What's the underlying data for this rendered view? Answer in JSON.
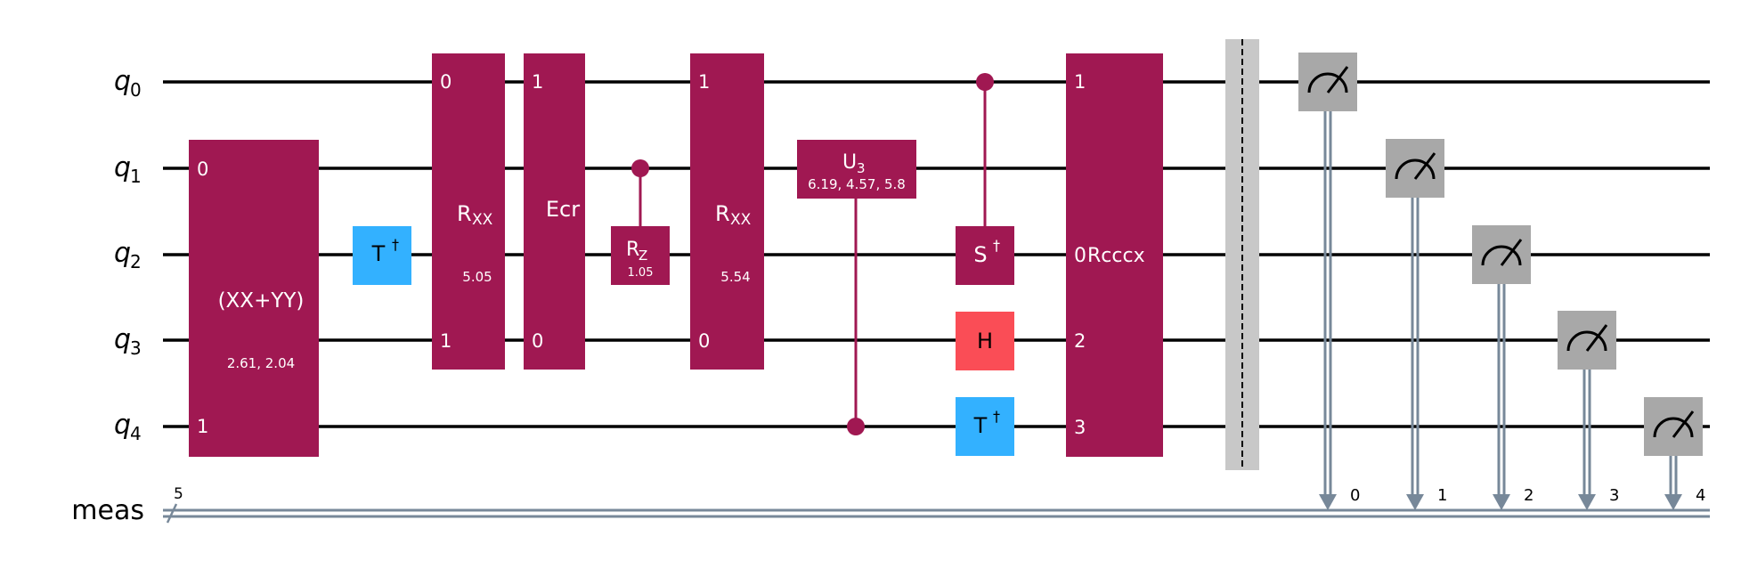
{
  "colors": {
    "multi_gate": "#a01852",
    "dagger_gate": "#33b1ff",
    "h_gate": "#fa4d56",
    "measure": "#a8a8a8",
    "barrier": "#c8c8c8",
    "classical": "#778899",
    "wire": "#000000"
  },
  "qubits": [
    {
      "sub": "0",
      "letter": "q"
    },
    {
      "sub": "1",
      "letter": "q"
    },
    {
      "sub": "2",
      "letter": "q"
    },
    {
      "sub": "3",
      "letter": "q"
    },
    {
      "sub": "4",
      "letter": "q"
    }
  ],
  "classical": {
    "label": "meas",
    "width": "5"
  },
  "gates": {
    "xxyy": {
      "label": "(XX+YY)",
      "params": "2.61, 2.04",
      "pin_a": "0",
      "pin_b": "1"
    },
    "tdg1": {
      "base": "T",
      "sup": "†"
    },
    "rxx1": {
      "base": "R",
      "sub": "XX",
      "params": "5.05",
      "pin_a": "0",
      "pin_b": "1"
    },
    "ecr": {
      "label": "Ecr",
      "pin_a": "1",
      "pin_b": "0"
    },
    "rz": {
      "base": "R",
      "sub": "Z",
      "params": "1.05"
    },
    "rxx2": {
      "base": "R",
      "sub": "XX",
      "params": "5.54",
      "pin_a": "1",
      "pin_b": "0"
    },
    "u3": {
      "base": "U",
      "sub": "3",
      "params": "6.19, 4.57, 5.8"
    },
    "csdg": {
      "base": "S",
      "sup": "†"
    },
    "h": {
      "label": "H"
    },
    "tdg2": {
      "base": "T",
      "sup": "†"
    },
    "rcccx": {
      "label": "Rcccx",
      "pin_q0": "1",
      "pin_q2": "0",
      "pin_q3": "2",
      "pin_q4": "3"
    }
  },
  "measure_bits": [
    "0",
    "1",
    "2",
    "3",
    "4"
  ]
}
